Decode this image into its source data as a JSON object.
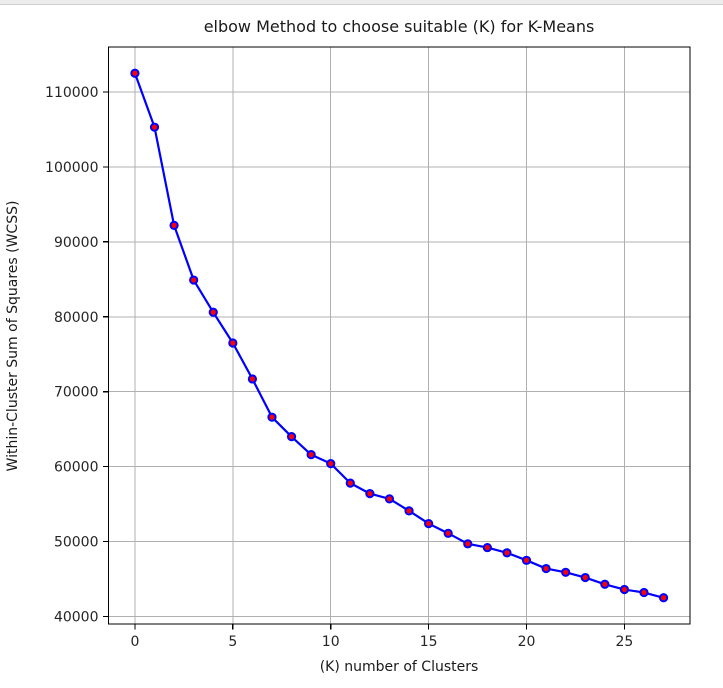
{
  "chart_data": {
    "type": "line",
    "title": "elbow Method to choose suitable (K) for K-Means",
    "xlabel": "(K) number of Clusters",
    "ylabel": "Within-Cluster Sum of Squares (WCSS)",
    "x": [
      0,
      1,
      2,
      3,
      4,
      5,
      6,
      7,
      8,
      9,
      10,
      11,
      12,
      13,
      14,
      15,
      16,
      17,
      18,
      19,
      20,
      21,
      22,
      23,
      24,
      25,
      26,
      27
    ],
    "y": [
      112500,
      105300,
      92200,
      84900,
      80600,
      76500,
      71700,
      66600,
      64000,
      61600,
      60400,
      57800,
      56400,
      55700,
      54100,
      52400,
      51100,
      49700,
      49200,
      48500,
      47500,
      46400,
      45900,
      45200,
      44300,
      43600,
      43200,
      42500
    ],
    "xticks": [
      0,
      5,
      10,
      15,
      20,
      25
    ],
    "yticks": [
      40000,
      50000,
      60000,
      70000,
      80000,
      90000,
      100000,
      110000
    ],
    "xlim": [
      -1.35,
      28.35
    ],
    "ylim": [
      39000,
      116000
    ],
    "grid": true,
    "legend": "none",
    "marker": "circle",
    "colors": {
      "line": "#0000ff",
      "marker_face": "#ff0000",
      "marker_edge": "#0000ff",
      "grid": "#b0b0b0",
      "spine": "#000000",
      "tick_text": "#262626"
    }
  }
}
